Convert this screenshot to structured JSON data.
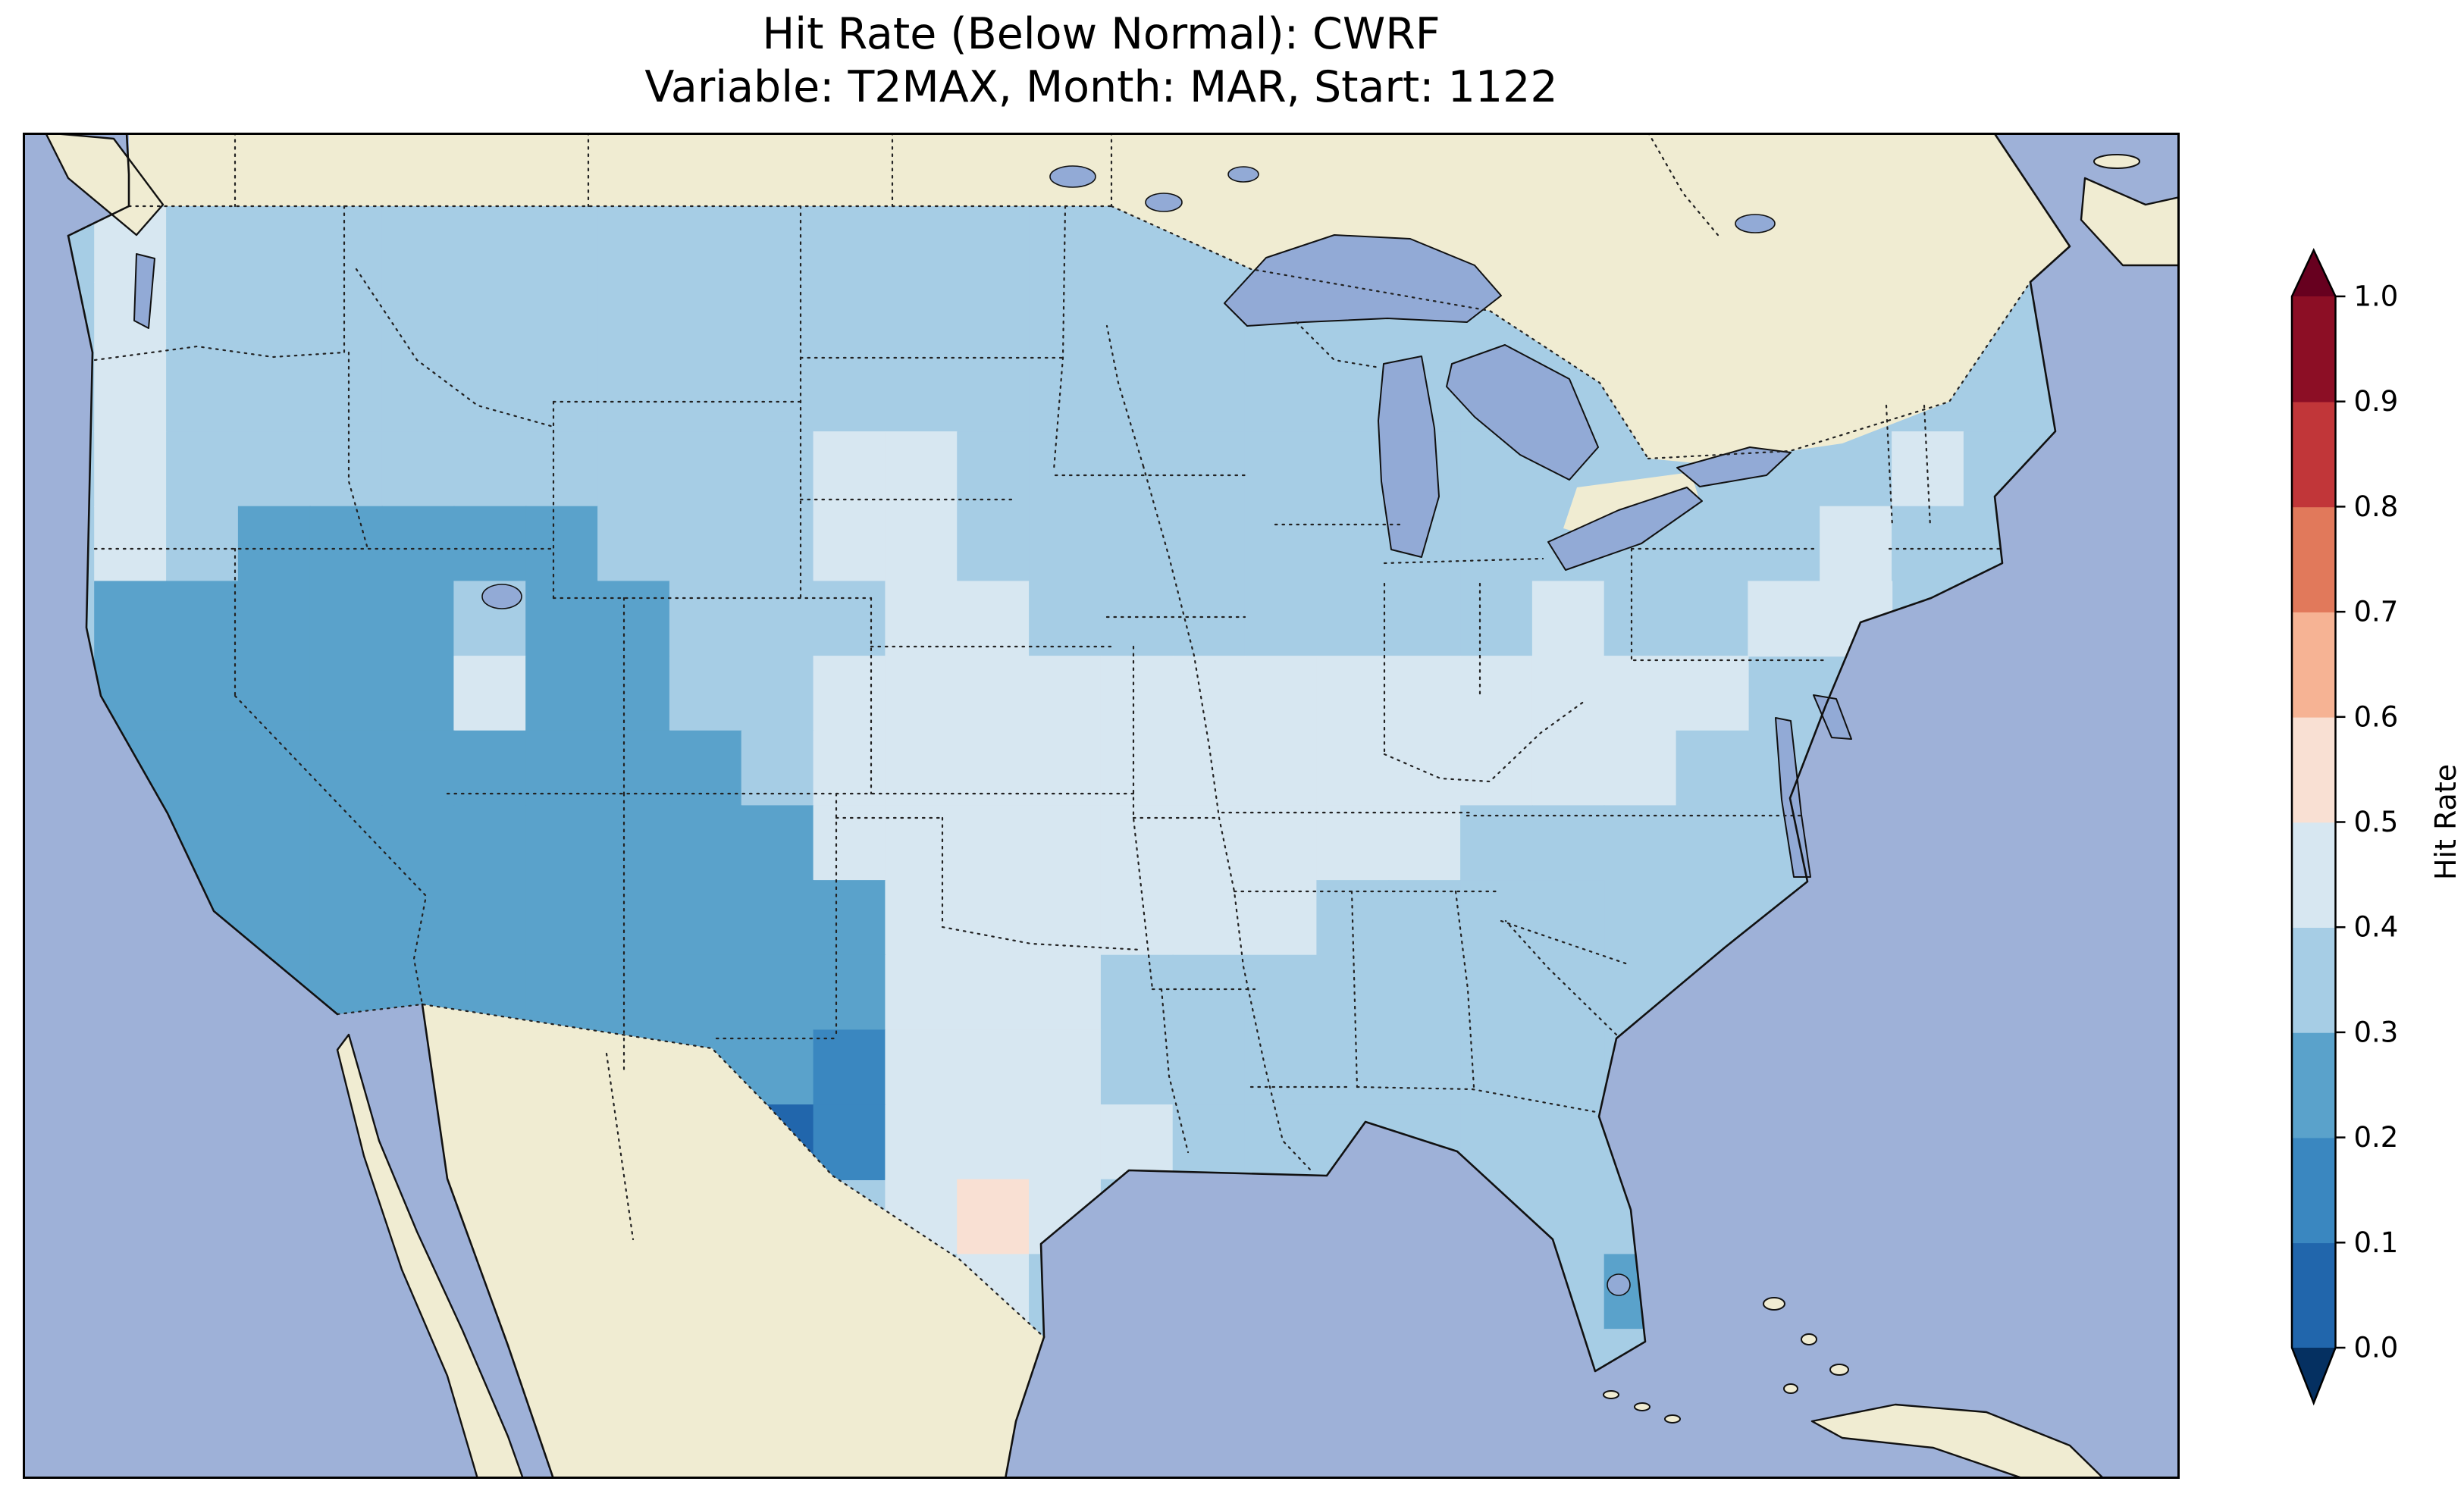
{
  "title": {
    "line1": "Hit Rate (Below Normal): CWRF",
    "line2": "Variable: T2MAX, Month: MAR, Start: 1122"
  },
  "colorbar": {
    "label": "Hit Rate",
    "ticks": [
      "1.0",
      "0.9",
      "0.8",
      "0.7",
      "0.6",
      "0.5",
      "0.4",
      "0.3",
      "0.2",
      "0.1",
      "0.0"
    ],
    "band_colors_bottom_to_top": [
      "#2166ac",
      "#3a87c0",
      "#5aa2cb",
      "#a6cde5",
      "#d7e7f1",
      "#f9e0d3",
      "#f6b394",
      "#e1795b",
      "#c13639",
      "#8c0e25"
    ],
    "extend_under_color": "#053061",
    "extend_over_color": "#67001f"
  },
  "map": {
    "ocean_color": "#9eb1d8",
    "land_color": "#f0ecd2",
    "lake_color": "#92aad6",
    "coast_color": "#111111",
    "border_color": "#222222",
    "bin_colors": {
      "0": "#2166ac",
      "1": "#3a87c0",
      "2": "#5aa2cb",
      "3": "#a6cde5",
      "4": "#d7e7f1",
      "5": "#f9e0d3",
      "6": "#f6b394",
      "7": "#e1795b",
      "8": "#c13639",
      "9": "#8c0e25"
    }
  },
  "chart_data": {
    "type": "heatmap",
    "title": "Hit Rate (Below Normal): CWRF",
    "subtitle": "Variable: T2MAX, Month: MAR, Start: 1122",
    "model": "CWRF",
    "category": "Below Normal",
    "variable": "T2MAX",
    "month": "MAR",
    "start": "1122",
    "value_label": "Hit Rate",
    "value_range": [
      0.0,
      1.0
    ],
    "bin_width": 0.1,
    "colormap": "RdBu_r",
    "legend_position": "right",
    "region": "Contiguous United States (PlateCarree map)",
    "grid": {
      "ncols": 30,
      "nrows": 18,
      "encoding": "each char is one cell, rows top-to-bottom; digit d means hit-rate bin center d*0.1+0.05 (e.g. 3 = 0.3-0.4); '-' means no data / outside CONUS",
      "rows": [
        "------------------------------",
        "-4333333333333333----------3--",
        "-4333333333333333333------333-",
        "-43333333333333333333---33333-",
        "-43333333334433333333--333433-",
        "-43222223334433333333333343---",
        "-2222232233344333333343344----",
        "-22222422334444444444444------",
        "-22222222234444444444443------",
        "-2222222222444444444333-------",
        "-222222222224444443333--------",
        "--2222222222444333333---------",
        "----222222214443333333--------",
        "----------0144443333333-------",
        "------------4543-----33-------",
        "------------343------32-------",
        "-------------3--------3-------",
        "------------------------------"
      ]
    },
    "summary": "Hit rates are mostly 0.3-0.5 over CONUS; a large 0.2-0.3 (medium blue) region covers the Southwest (California, Nevada, Utah, Arizona, New Mexico, western Colorado and far-west Texas); minima of 0.0-0.2 (dark blue) appear in far west Texas near Big Bend; an isolated 0.5-0.6 (pale pink) cell sits in south-central Texas; a 0.2-0.3 patch appears in south Florida near Lake Okeechobee."
  }
}
